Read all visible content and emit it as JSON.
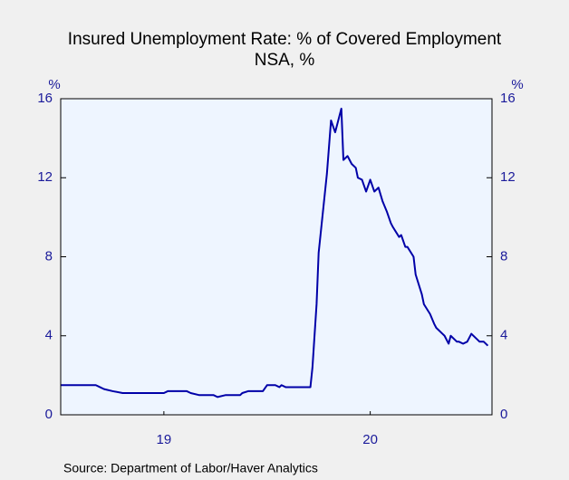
{
  "chart_data": {
    "type": "line",
    "title": "Insured Unemployment Rate: % of Covered Employment",
    "subtitle": "NSA, %",
    "y_label": "%",
    "y2_label": "%",
    "source": "Source:  Department of Labor/Haver Analytics",
    "xlim": [
      2019,
      2021.09
    ],
    "xticks": [
      {
        "value": 2019.5,
        "label": "19"
      },
      {
        "value": 2020.5,
        "label": "20"
      }
    ],
    "ylim": [
      0,
      16
    ],
    "yticks": [
      0,
      4,
      8,
      12,
      16
    ],
    "y2lim": [
      0,
      16
    ],
    "y2ticks": [
      0,
      4,
      8,
      12,
      16
    ],
    "x": [
      2019.0,
      2019.17,
      2019.19,
      2019.21,
      2019.25,
      2019.3,
      2019.5,
      2019.52,
      2019.61,
      2019.63,
      2019.67,
      2019.74,
      2019.76,
      2019.8,
      2019.87,
      2019.88,
      2019.91,
      2019.98,
      2020.0,
      2020.04,
      2020.06,
      2020.07,
      2020.09,
      2020.21,
      2020.22,
      2020.24,
      2020.25,
      2020.28,
      2020.29,
      2020.31,
      2020.33,
      2020.36,
      2020.37,
      2020.39,
      2020.41,
      2020.43,
      2020.44,
      2020.46,
      2020.48,
      2020.5,
      2020.52,
      2020.54,
      2020.56,
      2020.58,
      2020.6,
      2020.61,
      2020.64,
      2020.65,
      2020.67,
      2020.68,
      2020.71,
      2020.72,
      2020.75,
      2020.76,
      2020.79,
      2020.81,
      2020.82,
      2020.85,
      2020.86,
      2020.88,
      2020.89,
      2020.92,
      2020.93,
      2020.95,
      2020.97,
      2020.99,
      2021.01,
      2021.03,
      2021.05,
      2021.07
    ],
    "series": [
      {
        "name": "Insured Unemployment Rate",
        "color": "#0000a8",
        "values": [
          1.5,
          1.5,
          1.4,
          1.3,
          1.2,
          1.1,
          1.1,
          1.2,
          1.2,
          1.1,
          1.0,
          1.0,
          0.9,
          1.0,
          1.0,
          1.1,
          1.2,
          1.2,
          1.5,
          1.5,
          1.4,
          1.5,
          1.4,
          1.4,
          2.4,
          5.6,
          8.2,
          11.2,
          12.2,
          14.9,
          14.3,
          15.5,
          12.9,
          13.1,
          12.7,
          12.5,
          12.0,
          11.9,
          11.3,
          11.9,
          11.3,
          11.5,
          10.8,
          10.3,
          9.7,
          9.5,
          9.0,
          9.1,
          8.5,
          8.5,
          8.0,
          7.1,
          6.1,
          5.6,
          5.1,
          4.6,
          4.4,
          4.1,
          4.0,
          3.6,
          4.0,
          3.7,
          3.7,
          3.6,
          3.7,
          4.1,
          3.9,
          3.7,
          3.7,
          3.5
        ]
      }
    ]
  }
}
